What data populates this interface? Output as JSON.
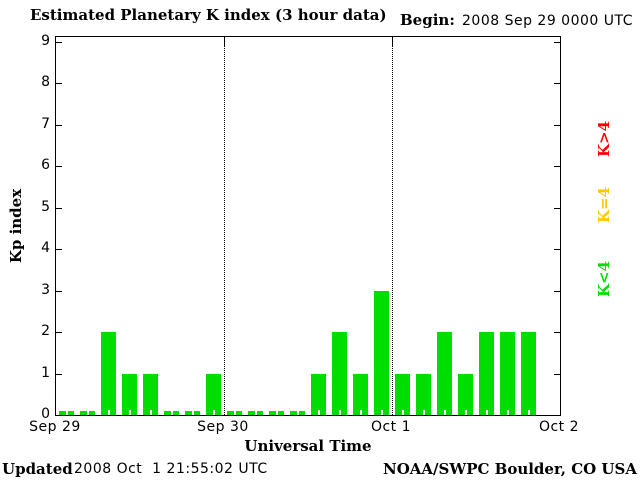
{
  "title": "Estimated Planetary K index (3 hour data)",
  "begin": {
    "label": "Begin:",
    "value": "2008 Sep 29 0000 UTC"
  },
  "footer": {
    "updated_label": "Updated",
    "updated_value": "2008 Oct  1 21:55:02 UTC",
    "source": "NOAA/SWPC Boulder, CO USA"
  },
  "chart_data": {
    "type": "bar",
    "title": "Estimated Planetary K index (3 hour data)",
    "begin": "2008 Sep 29 0000 UTC",
    "xlabel": "Universal Time",
    "ylabel": "Kp index",
    "ylim": [
      0,
      9
    ],
    "y_ticks": [
      0,
      1,
      2,
      3,
      4,
      5,
      6,
      7,
      8,
      9
    ],
    "x_tick_labels": [
      "Sep 29",
      "Sep 30",
      "Oct 1",
      "Oct 2"
    ],
    "interval_hours": 3,
    "bars_per_day": 8,
    "series": [
      {
        "date": "Sep 29",
        "values": [
          0,
          0,
          2,
          1,
          1,
          0,
          0,
          1
        ]
      },
      {
        "date": "Sep 30",
        "values": [
          0,
          0,
          0,
          0,
          1,
          2,
          1,
          3
        ]
      },
      {
        "date": "Oct 1",
        "values": [
          1,
          1,
          2,
          1,
          2,
          2,
          2,
          null
        ]
      }
    ],
    "bar_color": "#00DD00",
    "legend": [
      {
        "label": "K>4",
        "color": "#FF0000"
      },
      {
        "label": "K=4",
        "color": "#FFC800"
      },
      {
        "label": "K<4",
        "color": "#00DD00"
      }
    ],
    "grid": "dotted vertical day-boundary lines",
    "legend_position": "right"
  }
}
